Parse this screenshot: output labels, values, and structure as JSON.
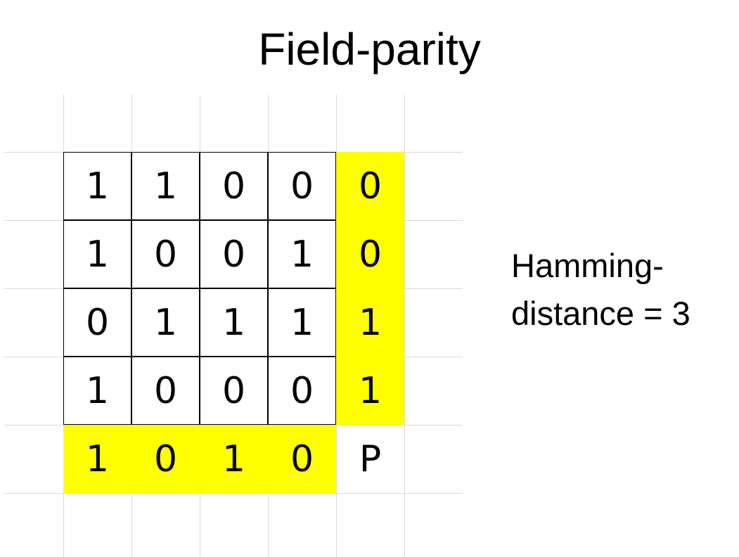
{
  "title": "Field-parity",
  "data_rows": [
    [
      "1",
      "1",
      "0",
      "0"
    ],
    [
      "1",
      "0",
      "0",
      "1"
    ],
    [
      "0",
      "1",
      "1",
      "1"
    ],
    [
      "1",
      "0",
      "0",
      "0"
    ]
  ],
  "row_parity": [
    "0",
    "0",
    "1",
    "1"
  ],
  "column_parity": [
    "1",
    "0",
    "1",
    "0"
  ],
  "corner_label": "P",
  "caption": {
    "line1": "Hamming-",
    "line2": "distance = 3"
  },
  "colors": {
    "parity_highlight": "#ffff00",
    "grid_line": "#d9d9d9",
    "cell_border": "#000000"
  }
}
